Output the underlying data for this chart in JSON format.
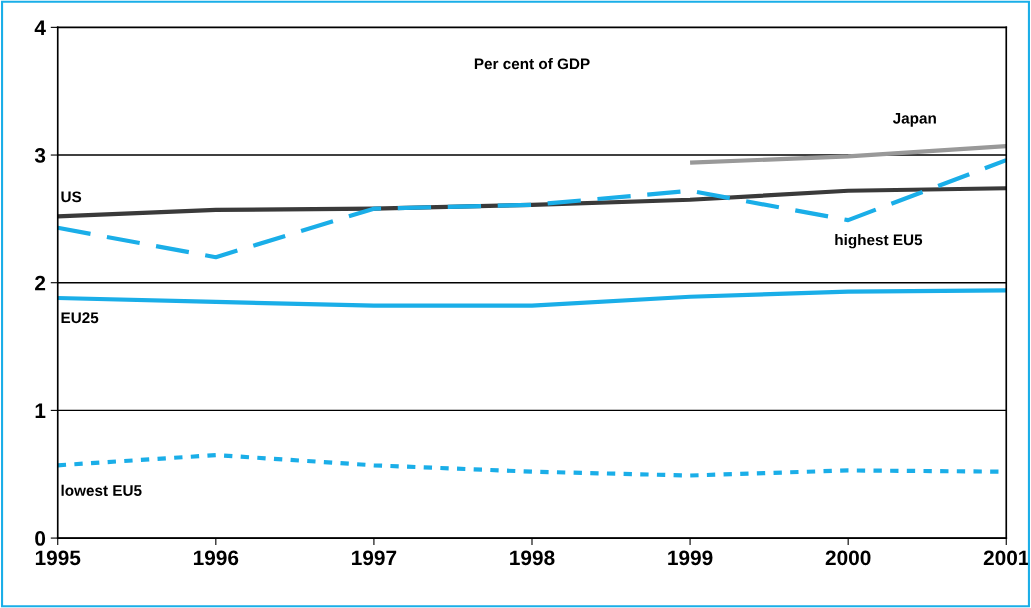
{
  "chart_data": {
    "type": "line",
    "annotations": [
      "Per cent of GDP"
    ],
    "x": [
      1995,
      1996,
      1997,
      1998,
      1999,
      2000,
      2001
    ],
    "xlim": [
      1995,
      2001
    ],
    "xticks": [
      1995,
      1996,
      1997,
      1998,
      1999,
      2000,
      2001
    ],
    "ylim": [
      0,
      4
    ],
    "yticks": [
      0,
      1,
      2,
      3,
      4
    ],
    "grid": "y",
    "marker": "none",
    "series": [
      {
        "name": "US",
        "color": "#3a3a3a",
        "line_style": "solid",
        "values": [
          2.52,
          2.57,
          2.58,
          2.61,
          2.65,
          2.72,
          2.74
        ]
      },
      {
        "name": "Japan",
        "color": "#999999",
        "line_style": "solid",
        "values": [
          null,
          null,
          null,
          null,
          2.94,
          2.99,
          3.07
        ]
      },
      {
        "name": "highest EU5",
        "color": "#1aaee8",
        "line_style": "dashed",
        "values": [
          2.43,
          2.2,
          2.58,
          2.61,
          2.72,
          2.49,
          2.96
        ]
      },
      {
        "name": "EU25",
        "color": "#1aaee8",
        "line_style": "solid",
        "values": [
          1.88,
          1.85,
          1.82,
          1.82,
          1.89,
          1.93,
          1.94
        ]
      },
      {
        "name": "lowest EU5",
        "color": "#1aaee8",
        "line_style": "dotted",
        "values": [
          0.57,
          0.65,
          0.57,
          0.52,
          0.49,
          0.53,
          0.52
        ]
      }
    ]
  }
}
